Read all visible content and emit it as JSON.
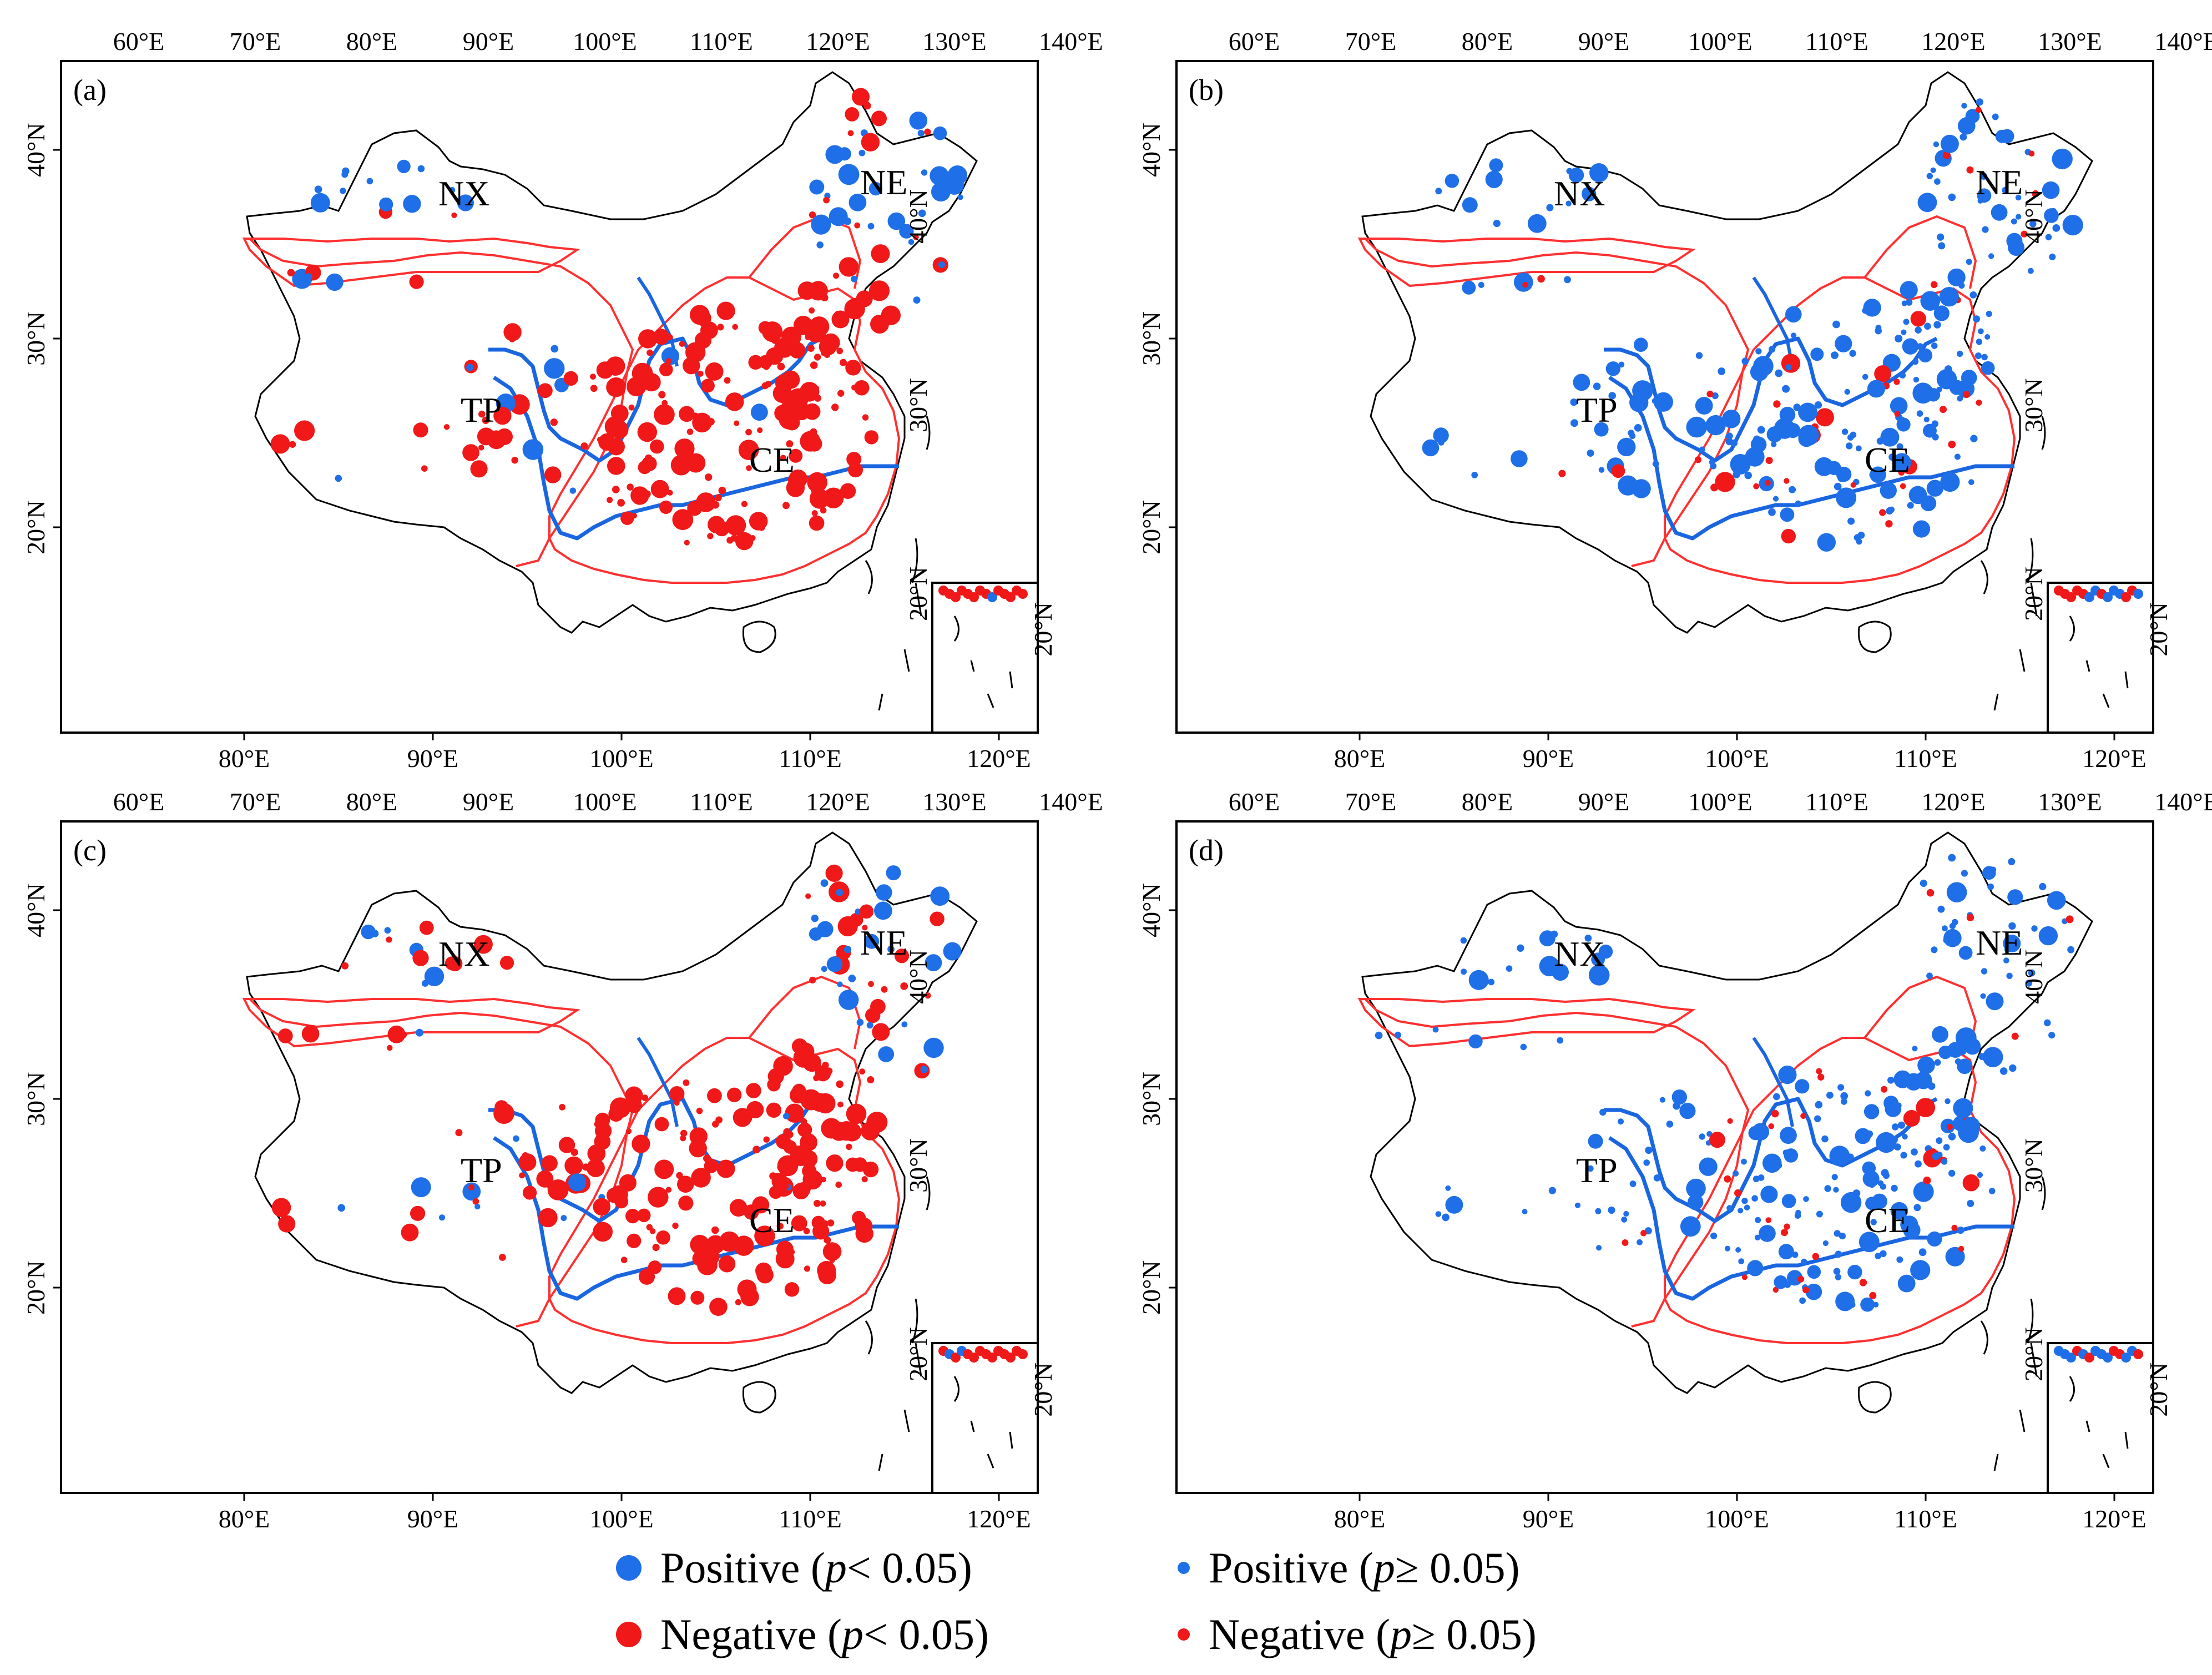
{
  "colors": {
    "positive": "#1f6fe8",
    "negative": "#f01818",
    "boundary": "#ff3030",
    "river": "#1a66e0",
    "outline": "#000000"
  },
  "axis_ticks": {
    "top": [
      "60°E",
      "70°E",
      "80°E",
      "90°E",
      "100°E",
      "110°E",
      "120°E",
      "130°E",
      "140°E"
    ],
    "bottom": [
      "80°E",
      "90°E",
      "100°E",
      "110°E",
      "120°E"
    ],
    "left": [
      "40°N",
      "30°N",
      "20°N"
    ],
    "right": [
      "40°N",
      "30°N",
      "20°N"
    ],
    "inset_right": "20°N"
  },
  "panels": [
    {
      "label": "(a)",
      "regions": [
        "NX",
        "NE",
        "TP",
        "CE"
      ],
      "scheme": "negative-dominant"
    },
    {
      "label": "(b)",
      "regions": [
        "NX",
        "NE",
        "TP",
        "CE"
      ],
      "scheme": "positive-dominant"
    },
    {
      "label": "(c)",
      "regions": [
        "NX",
        "NE",
        "TP",
        "CE"
      ],
      "scheme": "negative-dominant-ne-positive"
    },
    {
      "label": "(d)",
      "regions": [
        "NX",
        "NE",
        "TP",
        "CE"
      ],
      "scheme": "positive-dominant"
    }
  ],
  "legend": {
    "items": [
      {
        "prefix": "Positive (",
        "var": "p",
        "suffix": " < 0.05)",
        "color_key": "positive",
        "size": "large"
      },
      {
        "prefix": "Positive (",
        "var": "p",
        "suffix": " ≥ 0.05)",
        "color_key": "positive",
        "size": "small"
      },
      {
        "prefix": "Negative (",
        "var": "p",
        "suffix": " < 0.05)",
        "color_key": "negative",
        "size": "large"
      },
      {
        "prefix": "Negative (",
        "var": "p",
        "suffix": " ≥ 0.05)",
        "color_key": "negative",
        "size": "small"
      }
    ]
  }
}
